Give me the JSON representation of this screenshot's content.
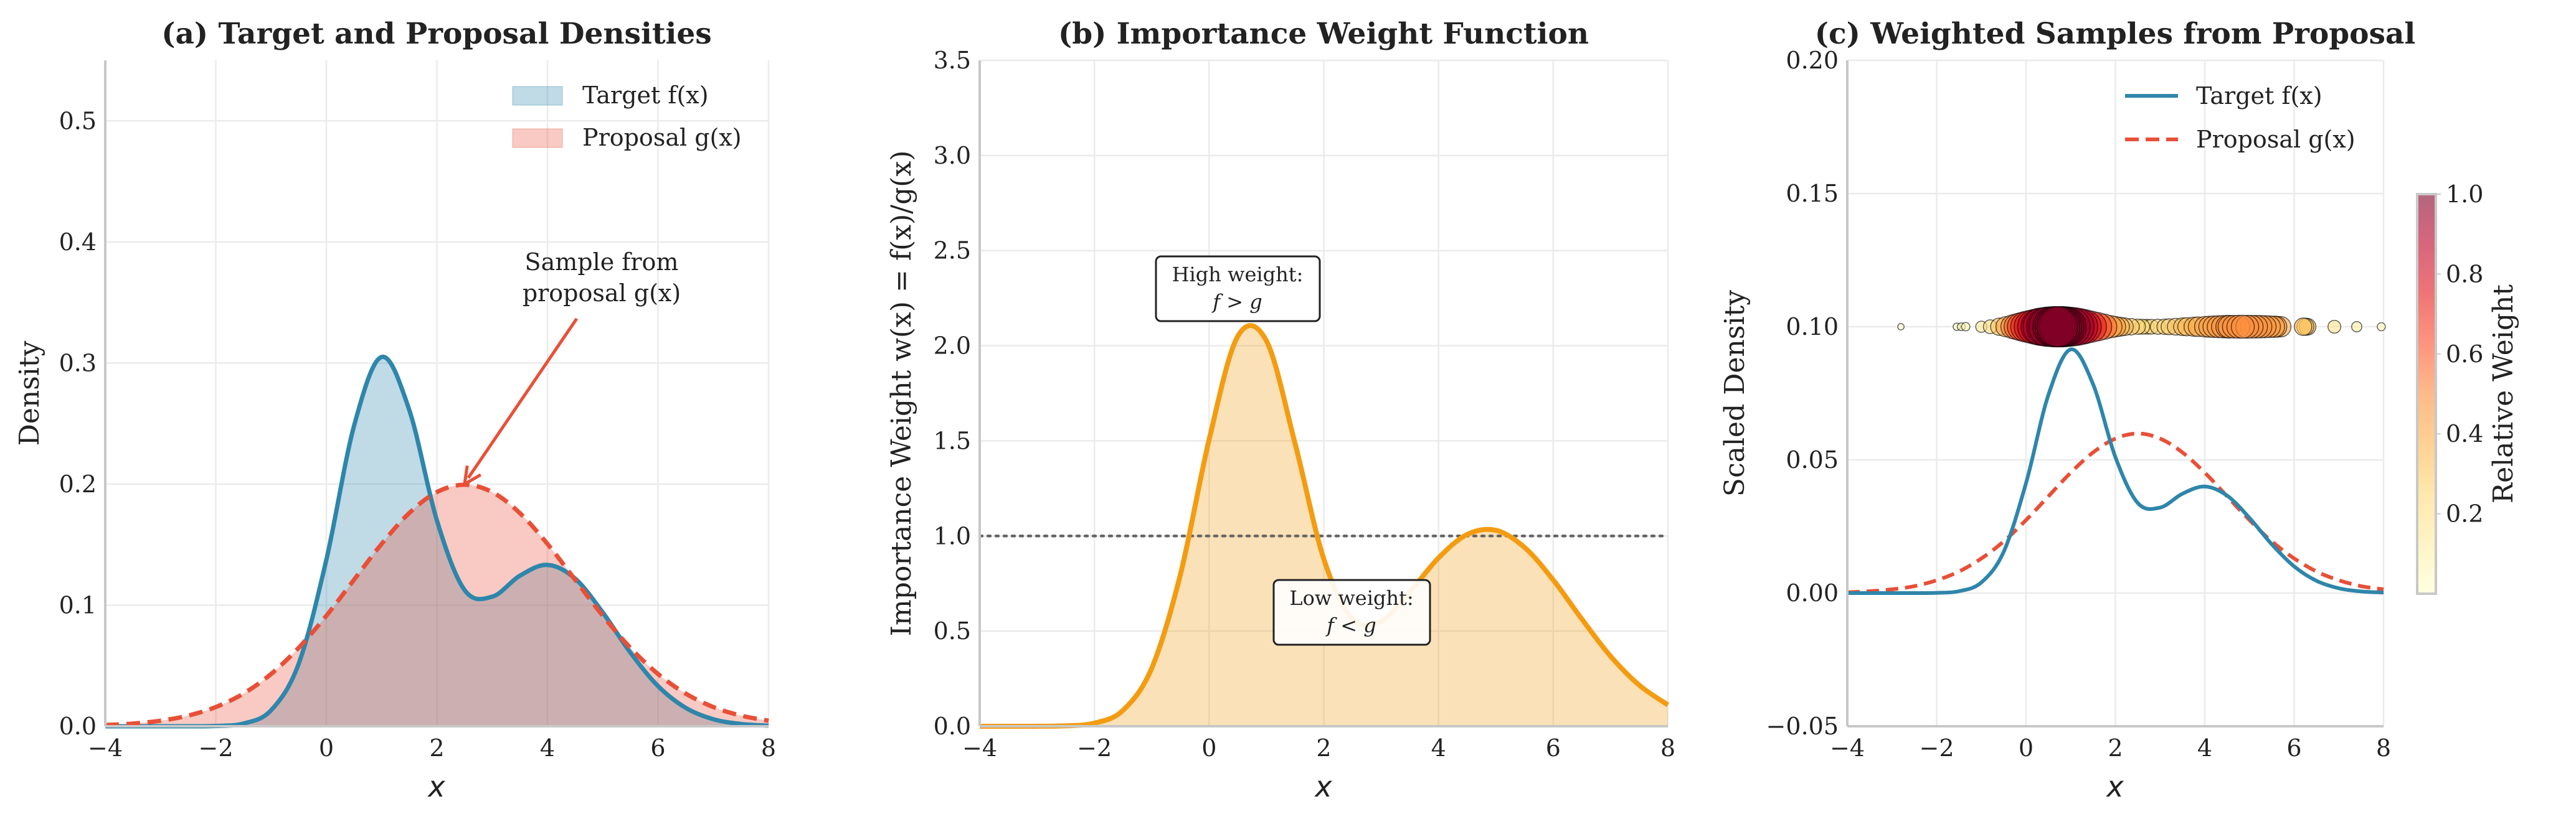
{
  "colors": {
    "target": "#2E86AB",
    "proposal": "#E94F37",
    "weight": "#F39C12",
    "reference_line": "#666666",
    "colormap": [
      "#ffffcc",
      "#ffeda0",
      "#fed976",
      "#feb24c",
      "#fd8d3c",
      "#fc4e2a",
      "#e31a1c",
      "#bd0026",
      "#800026"
    ]
  },
  "chart_data": [
    {
      "type": "area",
      "title": "(a) Target and Proposal Densities",
      "xlabel": "x",
      "ylabel": "Density",
      "xlim": [
        -4,
        8
      ],
      "ylim": [
        0,
        0.55
      ],
      "grid": true,
      "legend_placement": "top-right",
      "xticks": [
        -4,
        -2,
        0,
        2,
        4,
        6,
        8
      ],
      "xtick_labels": [
        "−4",
        "−2",
        "0",
        "2",
        "4",
        "6",
        "8"
      ],
      "yticks": [
        0,
        0.1,
        0.2,
        0.3,
        0.4,
        0.5
      ],
      "ytick_labels": [
        "0.0",
        "0.1",
        "0.2",
        "0.3",
        "0.4",
        "0.5"
      ],
      "x": [
        -4,
        -3.5,
        -3,
        -2.5,
        -2,
        -1.5,
        -1,
        -0.5,
        0,
        0.5,
        1,
        1.5,
        2,
        2.5,
        3,
        3.5,
        4,
        4.5,
        5,
        5.5,
        6,
        6.5,
        7,
        7.5,
        8
      ],
      "series": [
        {
          "name": "Target f(x)",
          "style": "solid",
          "values": [
            0,
            0,
            0,
            2e-05,
            0.00026,
            0.00227,
            0.0132,
            0.0517,
            0.1375,
            0.248,
            0.305,
            0.2613,
            0.17,
            0.1125,
            0.107,
            0.1243,
            0.1333,
            0.122,
            0.094,
            0.0609,
            0.0332,
            0.0152,
            0.0058,
            0.0019,
            0.0005
          ]
        },
        {
          "name": "Proposal g(x)",
          "style": "dashed",
          "values": [
            0.001,
            0.0022,
            0.0046,
            0.0088,
            0.0159,
            0.027,
            0.0432,
            0.0648,
            0.0913,
            0.121,
            0.1506,
            0.1761,
            0.1934,
            0.1995,
            0.1934,
            0.1761,
            0.1506,
            0.121,
            0.0913,
            0.0648,
            0.0432,
            0.027,
            0.0159,
            0.0088,
            0.0046
          ]
        }
      ],
      "annotation": {
        "text_line1": "Sample from",
        "text_line2": "proposal g(x)",
        "points_to": [
          2.5,
          0.2
        ]
      }
    },
    {
      "type": "area",
      "title": "(b) Importance Weight Function",
      "xlabel": "x",
      "ylabel": "Importance Weight w(x) = f(x)/g(x)",
      "xlim": [
        -4,
        8
      ],
      "ylim": [
        0,
        3.5
      ],
      "grid": true,
      "xticks": [
        -4,
        -2,
        0,
        2,
        4,
        6,
        8
      ],
      "xtick_labels": [
        "−4",
        "−2",
        "0",
        "2",
        "4",
        "6",
        "8"
      ],
      "yticks": [
        0,
        0.5,
        1,
        1.5,
        2,
        2.5,
        3,
        3.5
      ],
      "ytick_labels": [
        "0.0",
        "0.5",
        "1.0",
        "1.5",
        "2.0",
        "2.5",
        "3.0",
        "3.5"
      ],
      "reference_line_y": 1.0,
      "x": [
        -4,
        -3.5,
        -3,
        -2.5,
        -2,
        -1.5,
        -1,
        -0.5,
        0,
        0.5,
        1,
        1.5,
        2,
        2.5,
        3,
        3.5,
        4,
        4.5,
        5,
        5.5,
        6,
        6.5,
        7,
        7.5,
        8
      ],
      "values": [
        0,
        0,
        0.0002,
        0.0024,
        0.0164,
        0.084,
        0.306,
        0.798,
        1.506,
        2.05,
        2.025,
        1.484,
        0.879,
        0.564,
        0.553,
        0.706,
        0.885,
        1.008,
        1.03,
        0.94,
        0.769,
        0.563,
        0.368,
        0.216,
        0.112
      ],
      "annotations": [
        {
          "line1": "High weight:",
          "line2": "f > g"
        },
        {
          "line1": "Low weight:",
          "line2": "f < g"
        }
      ]
    },
    {
      "type": "scatter",
      "title": "(c) Weighted Samples from Proposal",
      "xlabel": "x",
      "ylabel": "Scaled Density",
      "xlim": [
        -4,
        8
      ],
      "ylim": [
        -0.05,
        0.2
      ],
      "grid": true,
      "legend_placement": "top-right",
      "xticks": [
        -4,
        -2,
        0,
        2,
        4,
        6,
        8
      ],
      "xtick_labels": [
        "−4",
        "−2",
        "0",
        "2",
        "4",
        "6",
        "8"
      ],
      "yticks": [
        -0.05,
        0,
        0.05,
        0.1,
        0.15,
        0.2
      ],
      "ytick_labels": [
        "−0.05",
        "0.00",
        "0.05",
        "0.10",
        "0.15",
        "0.20"
      ],
      "x": [
        -4,
        -3.5,
        -3,
        -2.5,
        -2,
        -1.5,
        -1,
        -0.5,
        0,
        0.5,
        1,
        1.5,
        2,
        2.5,
        3,
        3.5,
        4,
        4.5,
        5,
        5.5,
        6,
        6.5,
        7,
        7.5,
        8
      ],
      "series": [
        {
          "name": "Target f(x)",
          "style": "solid",
          "values": [
            0,
            0,
            0,
            0,
            0.0001,
            0.0007,
            0.004,
            0.0155,
            0.0413,
            0.0744,
            0.0915,
            0.0784,
            0.051,
            0.0338,
            0.0321,
            0.0373,
            0.04,
            0.0366,
            0.0282,
            0.0183,
            0.01,
            0.0046,
            0.0018,
            0.0006,
            0.0002
          ]
        },
        {
          "name": "Proposal g(x)",
          "style": "dashed",
          "values": [
            0.0003,
            0.0007,
            0.0014,
            0.0026,
            0.0048,
            0.0081,
            0.013,
            0.0194,
            0.0274,
            0.0363,
            0.0452,
            0.0528,
            0.058,
            0.0599,
            0.058,
            0.0528,
            0.0452,
            0.0363,
            0.0274,
            0.0194,
            0.013,
            0.0081,
            0.0048,
            0.0026,
            0.0014
          ]
        }
      ],
      "samples": {
        "y": 0.1,
        "x": [
          -2.8,
          -1.55,
          -1.45,
          -1.35,
          -1.0,
          -0.8,
          -0.6,
          -0.45,
          -0.3,
          -0.2,
          -0.1,
          0.0,
          0.1,
          0.2,
          0.3,
          0.35,
          0.45,
          0.5,
          0.6,
          0.65,
          0.7,
          0.75,
          0.8,
          0.85,
          0.9,
          1.0,
          1.1,
          1.2,
          1.3,
          1.45,
          1.6,
          1.75,
          1.9,
          2.0,
          2.1,
          2.2,
          2.35,
          2.5,
          2.6,
          2.7,
          2.8,
          2.95,
          3.1,
          3.2,
          3.35,
          3.5,
          3.6,
          3.75,
          3.85,
          4.0,
          4.1,
          4.2,
          4.3,
          4.4,
          4.5,
          4.55,
          4.65,
          4.75,
          4.85,
          4.95,
          5.05,
          5.15,
          5.25,
          5.35,
          5.45,
          5.55,
          5.6,
          5.7,
          6.2,
          6.25,
          6.3,
          6.9,
          7.4,
          7.95
        ]
      },
      "colorbar": {
        "label": "Relative Weight",
        "range": [
          0,
          1
        ],
        "ticks": [
          0.2,
          0.4,
          0.6,
          0.8,
          1.0
        ],
        "tick_labels": [
          "0.2",
          "0.4",
          "0.6",
          "0.8",
          "1.0"
        ]
      }
    }
  ]
}
